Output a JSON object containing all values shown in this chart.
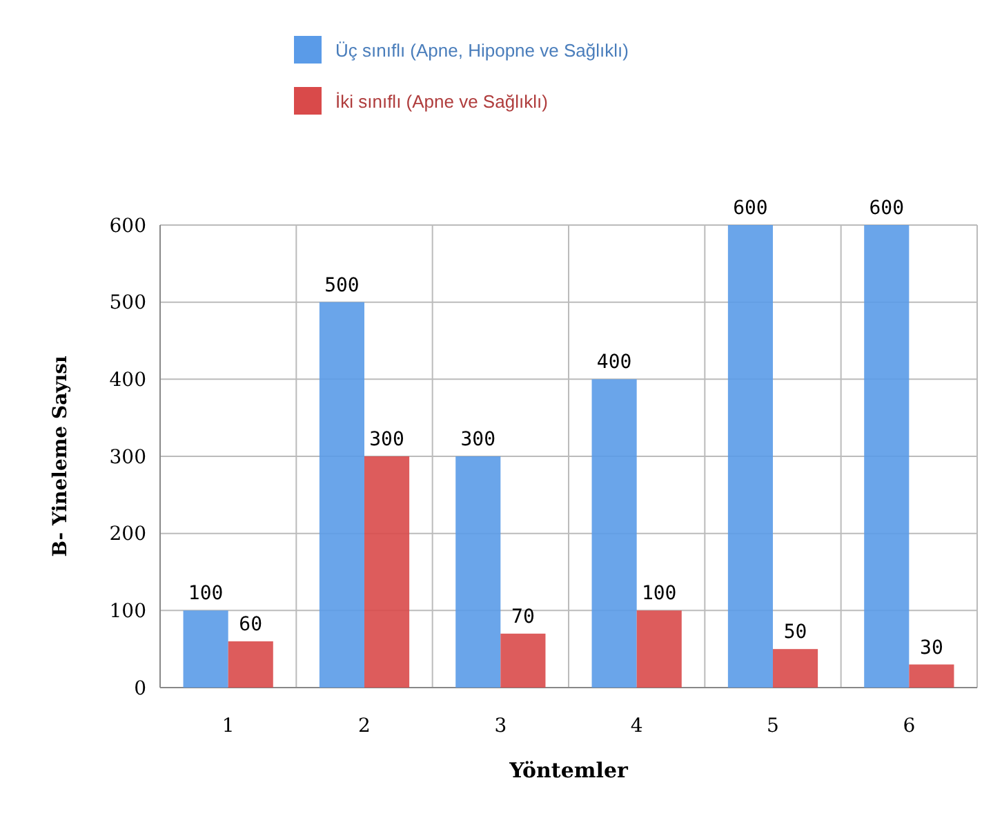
{
  "chart_data": {
    "type": "bar",
    "xlabel": "Yöntemler",
    "ylabel": "B- Yineleme Sayısı",
    "categories": [
      "1",
      "2",
      "3",
      "4",
      "5",
      "6"
    ],
    "series": [
      {
        "name": "Üç sınıflı (Apne, Hipopne ve  Sağlıklı)",
        "color": "#5a9be8",
        "values": [
          100,
          500,
          300,
          400,
          600,
          600
        ]
      },
      {
        "name": "İki sınıflı (Apne ve  Sağlıklı)",
        "color": "#d94a4a",
        "values": [
          60,
          300,
          70,
          100,
          50,
          30
        ]
      }
    ],
    "ylim": [
      0,
      600
    ],
    "yticks": [
      0,
      100,
      200,
      300,
      400,
      500,
      600
    ],
    "grid": true,
    "legend": "top",
    "data_labels": true
  }
}
